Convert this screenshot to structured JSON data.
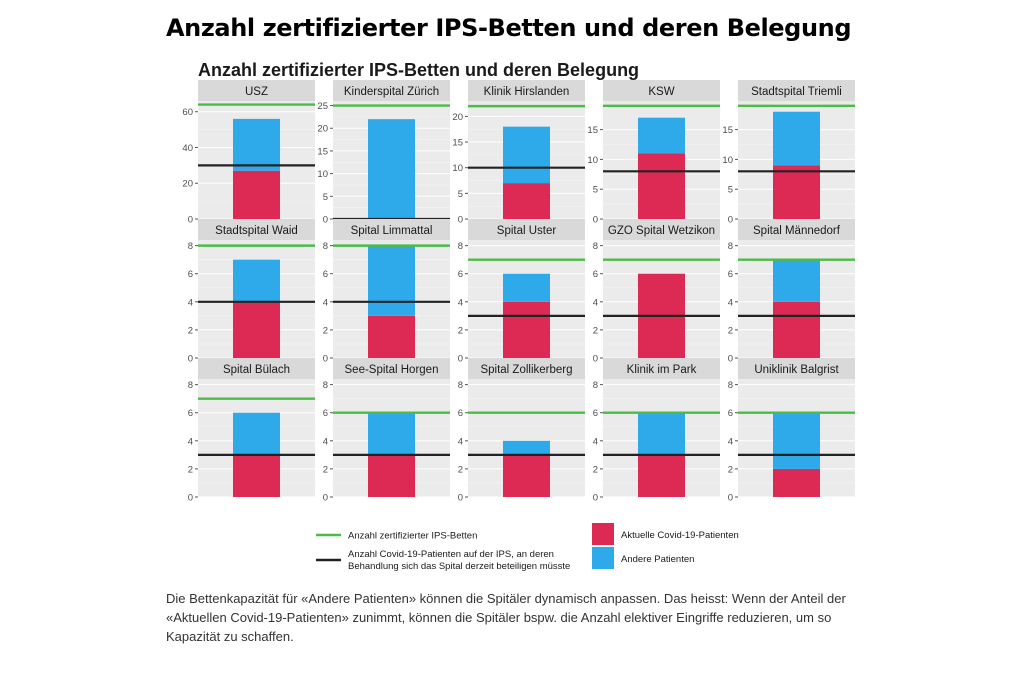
{
  "headline": "Anzahl zertifizierter IPS-Betten und deren Belegung",
  "caption": "Die Bettenkapazität für «Andere Patienten» können die Spitäler dynamisch anpassen. Das heisst: Wenn der Anteil der «Aktuellen Covid-19-Patienten» zunimmt, können die Spitäler bspw. die Anzahl elektiver Eingriffe reduzieren, um so Kapazität zu schaffen.",
  "colors": {
    "covid": "#dd2a55",
    "other": "#2eaaeb",
    "certified": "#4cbb47",
    "line": "#222222",
    "panel": "#ebebeb",
    "strip": "#d9d9d9"
  },
  "chart_data": {
    "type": "bar",
    "title": "Anzahl zertifizierter IPS-Betten und deren Belegung",
    "legend": {
      "certified": "Anzahl zertifizierter IPS-Betten",
      "max_covid": [
        "Anzahl Covid-19-Patienten auf der IPS, an deren",
        "Behandlung sich das Spital derzeit beteiligen müsste"
      ],
      "covid": "Aktuelle Covid-19-Patienten",
      "other": "Andere Patienten"
    },
    "panels": [
      {
        "name": "USZ",
        "covid": 27,
        "other": 29,
        "certified": 64,
        "max_covid": 30,
        "ylim": [
          0,
          66
        ],
        "ticks": [
          0,
          20,
          40,
          60
        ]
      },
      {
        "name": "Kinderspital Zürich",
        "covid": 0,
        "other": 22,
        "certified": 25,
        "max_covid": 0,
        "ylim": [
          0,
          26
        ],
        "ticks": [
          0,
          5,
          10,
          15,
          20,
          25
        ]
      },
      {
        "name": "Klinik Hirslanden",
        "covid": 7,
        "other": 11,
        "certified": 22,
        "max_covid": 10,
        "ylim": [
          0,
          23
        ],
        "ticks": [
          0,
          5,
          10,
          15,
          20
        ]
      },
      {
        "name": "KSW",
        "covid": 11,
        "other": 6,
        "certified": 19,
        "max_covid": 8,
        "ylim": [
          0,
          19.8
        ],
        "ticks": [
          0,
          5,
          10,
          15
        ]
      },
      {
        "name": "Stadtspital Triemli",
        "covid": 9,
        "other": 9,
        "certified": 19,
        "max_covid": 8,
        "ylim": [
          0,
          19.8
        ],
        "ticks": [
          0,
          5,
          10,
          15
        ]
      },
      {
        "name": "Stadtspital Waid",
        "covid": 4,
        "other": 3,
        "certified": 8,
        "max_covid": 4,
        "ylim": [
          0,
          8.4
        ],
        "ticks": [
          0,
          2,
          4,
          6,
          8
        ]
      },
      {
        "name": "Spital Limmattal",
        "covid": 3,
        "other": 5,
        "certified": 8,
        "max_covid": 4,
        "ylim": [
          0,
          8.4
        ],
        "ticks": [
          0,
          2,
          4,
          6,
          8
        ]
      },
      {
        "name": "Spital Uster",
        "covid": 4,
        "other": 2,
        "certified": 7,
        "max_covid": 3,
        "ylim": [
          0,
          8.4
        ],
        "ticks": [
          0,
          2,
          4,
          6,
          8
        ]
      },
      {
        "name": "GZO Spital Wetzikon",
        "covid": 6,
        "other": 0,
        "certified": 7,
        "max_covid": 3,
        "ylim": [
          0,
          8.4
        ],
        "ticks": [
          0,
          2,
          4,
          6,
          8
        ]
      },
      {
        "name": "Spital Männedorf",
        "covid": 4,
        "other": 3,
        "certified": 7,
        "max_covid": 3,
        "ylim": [
          0,
          8.4
        ],
        "ticks": [
          0,
          2,
          4,
          6,
          8
        ]
      },
      {
        "name": "Spital Bülach",
        "covid": 3,
        "other": 3,
        "certified": 7,
        "max_covid": 3,
        "ylim": [
          0,
          8.4
        ],
        "ticks": [
          0,
          2,
          4,
          6,
          8
        ]
      },
      {
        "name": "See-Spital Horgen",
        "covid": 3,
        "other": 3,
        "certified": 6,
        "max_covid": 3,
        "ylim": [
          0,
          8.4
        ],
        "ticks": [
          0,
          2,
          4,
          6,
          8
        ]
      },
      {
        "name": "Spital Zollikerberg",
        "covid": 3,
        "other": 1,
        "certified": 6,
        "max_covid": 3,
        "ylim": [
          0,
          8.4
        ],
        "ticks": [
          0,
          2,
          4,
          6,
          8
        ]
      },
      {
        "name": "Klinik im Park",
        "covid": 3,
        "other": 3,
        "certified": 6,
        "max_covid": 3,
        "ylim": [
          0,
          8.4
        ],
        "ticks": [
          0,
          2,
          4,
          6,
          8
        ]
      },
      {
        "name": "Uniklinik Balgrist",
        "covid": 2,
        "other": 4,
        "certified": 6,
        "max_covid": 3,
        "ylim": [
          0,
          8.4
        ],
        "ticks": [
          0,
          2,
          4,
          6,
          8
        ]
      }
    ]
  }
}
